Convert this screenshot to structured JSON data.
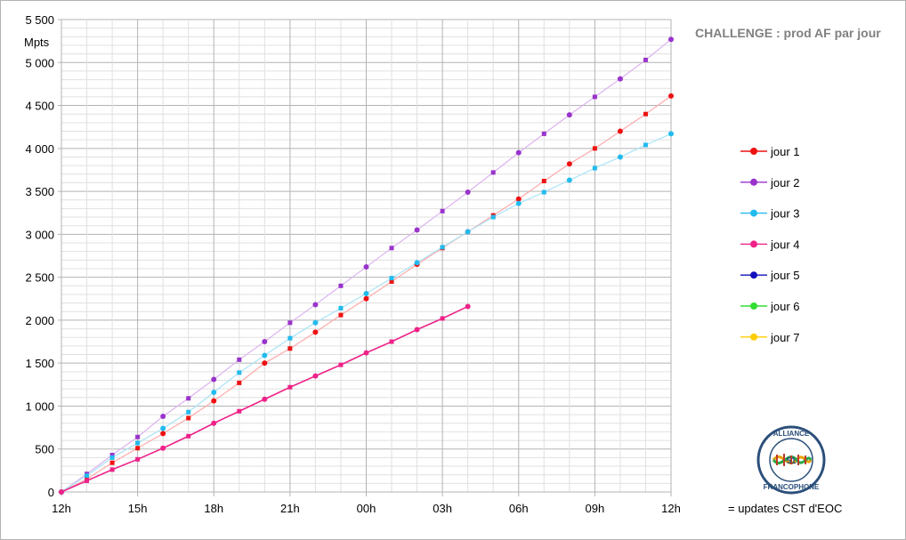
{
  "chart_data": {
    "type": "line",
    "title": "CHALLENGE : prod AF par jour",
    "ylabel": "Mpts",
    "xlabel": "",
    "x_hours": [
      0,
      1,
      2,
      3,
      4,
      5,
      6,
      7,
      8,
      9,
      10,
      11,
      12,
      13,
      14,
      15,
      16,
      17,
      18,
      19,
      20,
      21,
      22,
      23,
      24
    ],
    "x_tick_labels": [
      "12h",
      "15h",
      "18h",
      "21h",
      "00h",
      "03h",
      "06h",
      "09h",
      "12h"
    ],
    "x_tick_hours": [
      0,
      3,
      6,
      9,
      12,
      15,
      18,
      21,
      24
    ],
    "xlim": [
      0,
      24
    ],
    "ylim": [
      0,
      5500
    ],
    "y_major_step": 500,
    "y_minor_step": 100,
    "y_tick_labels": [
      "0",
      "500",
      "1 000",
      "1 500",
      "2 000",
      "2 500",
      "3 000",
      "3 500",
      "4 000",
      "4 500",
      "5 000",
      "5 500"
    ],
    "grid": true,
    "legend_position": "right",
    "series": [
      {
        "name": "jour 1",
        "color": "#ee1111",
        "line_color": "#ffaaaa",
        "values": [
          0,
          150,
          340,
          510,
          680,
          860,
          1060,
          1270,
          1500,
          1670,
          1860,
          2060,
          2250,
          2450,
          2650,
          2840,
          3030,
          3220,
          3410,
          3620,
          3820,
          4000,
          4200,
          4400,
          4610
        ]
      },
      {
        "name": "jour 2",
        "color": "#9933cc",
        "line_color": "#ddb3f0",
        "values": [
          0,
          210,
          430,
          640,
          880,
          1090,
          1310,
          1540,
          1750,
          1970,
          2180,
          2400,
          2620,
          2840,
          3050,
          3270,
          3490,
          3720,
          3950,
          4170,
          4390,
          4600,
          4810,
          5030,
          5270
        ]
      },
      {
        "name": "jour 3",
        "color": "#22bbee",
        "line_color": "#aae4f7",
        "values": [
          0,
          190,
          400,
          570,
          740,
          930,
          1160,
          1390,
          1590,
          1790,
          1970,
          2140,
          2310,
          2490,
          2670,
          2850,
          3030,
          3200,
          3360,
          3490,
          3630,
          3770,
          3900,
          4040,
          4170
        ]
      },
      {
        "name": "jour 4",
        "color": "#ee2288",
        "line_color": "#ee2288",
        "values": [
          0,
          130,
          260,
          380,
          510,
          650,
          800,
          940,
          1080,
          1220,
          1350,
          1480,
          1620,
          1750,
          1890,
          2020,
          2160
        ]
      },
      {
        "name": "jour 5",
        "color": "#1111bb",
        "line_color": "#1111bb",
        "values": []
      },
      {
        "name": "jour 6",
        "color": "#33dd33",
        "line_color": "#33dd33",
        "values": []
      },
      {
        "name": "jour 7",
        "color": "#ffcc00",
        "line_color": "#ffcc00",
        "values": []
      }
    ],
    "update_hours": [
      1,
      2,
      3,
      5,
      7,
      9,
      11,
      13,
      15,
      17,
      19,
      21,
      23
    ],
    "update_note": "= updates CST d'EOC"
  },
  "logo": {
    "top_text": "ALLIANCE",
    "center_text": "51",
    "bottom_text": "FRANCOPHONE"
  }
}
